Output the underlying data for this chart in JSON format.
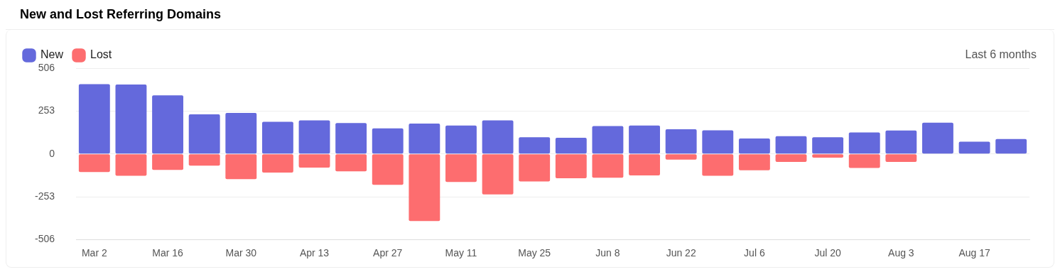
{
  "chart_data": {
    "type": "bar",
    "title": "New and Lost Referring Domains",
    "annotations": [
      "Last 6 months"
    ],
    "categories": [
      "Mar 2",
      null,
      "Mar 16",
      null,
      "Mar 30",
      null,
      "Apr 13",
      null,
      "Apr 27",
      null,
      "May 11",
      null,
      "May 25",
      null,
      "Jun 8",
      null,
      "Jun 22",
      null,
      "Jul 6",
      null,
      "Jul 20",
      null,
      "Aug 3",
      null,
      "Aug 17",
      null
    ],
    "series": [
      {
        "name": "New",
        "color": "#6469dc",
        "values": [
          412,
          410,
          346,
          234,
          242,
          190,
          198,
          182,
          151,
          179,
          168,
          198,
          99,
          96,
          165,
          168,
          146,
          140,
          91,
          105,
          99,
          127,
          138,
          184,
          72,
          88
        ]
      },
      {
        "name": "Lost",
        "color": "#fd6d6f",
        "values": [
          -107,
          -129,
          -94,
          -69,
          -149,
          -110,
          -80,
          -102,
          -182,
          -396,
          -165,
          -239,
          -162,
          -143,
          -140,
          -127,
          -33,
          -129,
          -96,
          -47,
          -22,
          -83,
          -47,
          0,
          0,
          0
        ]
      }
    ],
    "stacked": true,
    "ylim": [
      -506,
      506
    ],
    "yticks": [
      -506,
      -253,
      0,
      253,
      506
    ],
    "grid": "y",
    "legend": "top left"
  }
}
